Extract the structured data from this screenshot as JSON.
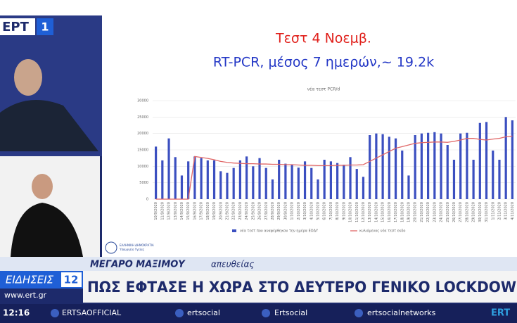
{
  "channel": {
    "name": "ΕΡΤ",
    "number": "1"
  },
  "slide": {
    "title": "Τεστ  4 Νοεμβ.",
    "subtitle": "RT-PCR, μέσος 7 ημερών,~ 19.2k",
    "logo_lines": [
      "ΕΛΛΗΝΙΚΗ ΔΗΜΟΚΡΑΤΙΑ",
      "Υπουργείο Υγείας"
    ]
  },
  "chart_data": {
    "type": "bar",
    "title": "νέα τεστ PCR/d",
    "categories": [
      "10/9/2020",
      "11/9/2020",
      "12/9/2020",
      "13/9/2020",
      "14/9/2020",
      "15/9/2020",
      "16/9/2020",
      "17/9/2020",
      "18/9/2020",
      "19/9/2020",
      "20/9/2020",
      "21/9/2020",
      "22/9/2020",
      "23/9/2020",
      "24/9/2020",
      "25/9/2020",
      "26/9/2020",
      "27/9/2020",
      "28/9/2020",
      "29/9/2020",
      "30/9/2020",
      "1/10/2020",
      "2/10/2020",
      "3/10/2020",
      "4/10/2020",
      "5/10/2020",
      "6/10/2020",
      "7/10/2020",
      "8/10/2020",
      "9/10/2020",
      "10/10/2020",
      "11/10/2020",
      "12/10/2020",
      "13/10/2020",
      "14/10/2020",
      "15/10/2020",
      "16/10/2020",
      "17/10/2020",
      "18/10/2020",
      "19/10/2020",
      "20/10/2020",
      "21/10/2020",
      "22/10/2020",
      "23/10/2020",
      "24/10/2020",
      "25/10/2020",
      "26/10/2020",
      "27/10/2020",
      "28/10/2020",
      "29/10/2020",
      "30/10/2020",
      "31/10/2020",
      "1/11/2020",
      "2/11/2020",
      "3/11/2020",
      "4/11/2020"
    ],
    "series": [
      {
        "name": "νέα τεστ που αναφέρθηκαν την ημέρα ΕΟΔΥ",
        "color": "#3b4fc0",
        "type": "bar",
        "values": [
          16000,
          11800,
          18500,
          12800,
          7200,
          11500,
          13000,
          12500,
          11800,
          11800,
          8500,
          8000,
          9500,
          11800,
          13000,
          10000,
          12500,
          9500,
          6000,
          12000,
          10800,
          10500,
          9600,
          11500,
          9500,
          6000,
          12000,
          11500,
          11000,
          10500,
          12800,
          9200,
          6800,
          19500,
          20000,
          19800,
          19000,
          18500,
          14800,
          7200,
          19500,
          20000,
          20200,
          20400,
          20000,
          16500,
          12000,
          20000,
          20200,
          12000,
          23200,
          23500,
          14800,
          12000,
          25000,
          24000
        ]
      },
      {
        "name": "κυλιόμενος νέα τεστ εκδο",
        "color": "#e06666",
        "type": "line",
        "values": [
          0,
          0,
          0,
          0,
          0,
          0,
          13000,
          12700,
          12400,
          12000,
          11500,
          11200,
          11000,
          10900,
          10800,
          10800,
          10700,
          10700,
          10600,
          10600,
          10500,
          10500,
          10400,
          10300,
          10300,
          10200,
          10200,
          10200,
          10300,
          10300,
          10400,
          10400,
          10500,
          11500,
          12500,
          13500,
          14500,
          15500,
          16000,
          16500,
          17000,
          17200,
          17300,
          17400,
          17400,
          17300,
          17600,
          18000,
          18500,
          18500,
          18200,
          18000,
          18300,
          18500,
          19000,
          19200
        ]
      }
    ],
    "ylim": [
      0,
      30000
    ],
    "yticks": [
      0,
      5000,
      10000,
      15000,
      20000,
      25000,
      30000
    ],
    "grid": true,
    "legend": "bottom"
  },
  "lower_third": {
    "location": "ΜΕΓΑΡΟ ΜΑΞΙΜΟΥ",
    "status": "απευθείας",
    "show": "ΕΙΔΗΣΕΙΣ",
    "show_number": "12",
    "headline": "ΠΩΣ ΕΦΤΑΣΕ Η ΧΩΡΑ ΣΤΟ ΔΕΥΤΕΡΟ ΓΕΝΙΚΟ LOCKDOW",
    "website": "www.ert.gr"
  },
  "ticker": {
    "time": "12:16",
    "handles": [
      "ERTSAOFFICIAL",
      "ertsocial",
      "Ertsocial",
      "ertsocialnetworks"
    ],
    "logo": "ERT"
  }
}
